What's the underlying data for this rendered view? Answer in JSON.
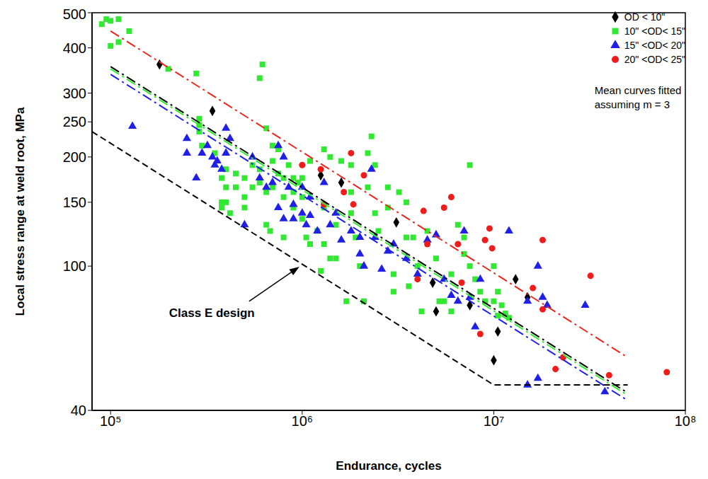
{
  "chart_data": {
    "type": "scatter",
    "x_label": "Endurance, cycles",
    "y_label": "Local stress range at weld root, MPa",
    "log": true,
    "grid": false,
    "legend": "upper right",
    "xlim": [
      80000,
      100000000
    ],
    "ylim": [
      40,
      500
    ],
    "xticks": [
      {
        "value": 100000,
        "label": "10⁵"
      },
      {
        "value": 1000000,
        "label": "10⁶"
      },
      {
        "value": 10000000,
        "label": "10⁷"
      },
      {
        "value": 100000000,
        "label": "10⁸"
      }
    ],
    "yticks": [
      40,
      100,
      150,
      200,
      250,
      300,
      400,
      500
    ],
    "note": [
      "Mean curves fitted",
      "assuming m = 3"
    ],
    "annotations": [
      {
        "text": "Class E design",
        "x": 1000000,
        "y": 101
      }
    ],
    "series": [
      {
        "name": "OD < 10\"",
        "color": "#000000",
        "marker": "diamond",
        "x": [
          180000,
          340000,
          1250000,
          1600000,
          3100000,
          4800000,
          5000000,
          7500000,
          10000000,
          10500000,
          13000000,
          15000000
        ],
        "y": [
          360,
          268,
          178,
          170,
          132,
          90,
          75,
          78,
          55,
          66,
          92,
          82
        ]
      },
      {
        "name": "10\" <OD< 15\"",
        "color": "#33e833",
        "marker": "square",
        "x": [
          90000,
          95000,
          100000,
          100000,
          110000,
          110000,
          125000,
          200000,
          280000,
          290000,
          290000,
          290000,
          300000,
          350000,
          380000,
          380000,
          380000,
          400000,
          400000,
          400000,
          420000,
          450000,
          450000,
          500000,
          500000,
          500000,
          550000,
          550000,
          600000,
          620000,
          600000,
          600000,
          650000,
          650000,
          650000,
          680000,
          700000,
          700000,
          700000,
          750000,
          750000,
          800000,
          800000,
          800000,
          850000,
          900000,
          900000,
          900000,
          950000,
          1000000,
          1000000,
          1000000,
          1050000,
          1100000,
          1100000,
          1200000,
          1250000,
          1300000,
          1300000,
          1300000,
          1400000,
          1400000,
          1500000,
          1500000,
          1600000,
          1700000,
          1800000,
          1800000,
          1800000,
          1900000,
          2000000,
          2100000,
          2200000,
          2200000,
          2300000,
          2400000,
          2400000,
          2500000,
          2800000,
          2800000,
          3000000,
          3000000,
          3200000,
          3500000,
          3500000,
          3600000,
          3800000,
          4000000,
          4200000,
          4500000,
          5000000,
          5200000,
          5500000,
          6000000,
          6000000,
          6500000,
          7000000,
          7000000,
          7500000,
          7500000,
          8000000,
          8500000,
          9000000,
          10000000,
          10000000,
          10500000,
          10500000,
          11000000,
          11500000,
          12000000
        ],
        "y": [
          465,
          480,
          475,
          405,
          480,
          415,
          445,
          350,
          340,
          255,
          245,
          235,
          215,
          205,
          175,
          150,
          145,
          185,
          165,
          150,
          140,
          180,
          165,
          175,
          155,
          145,
          190,
          165,
          330,
          360,
          185,
          170,
          160,
          130,
          240,
          125,
          215,
          195,
          165,
          210,
          180,
          175,
          155,
          120,
          190,
          175,
          160,
          145,
          170,
          175,
          155,
          135,
          120,
          195,
          115,
          125,
          97,
          210,
          145,
          115,
          200,
          105,
          130,
          105,
          195,
          80,
          190,
          160,
          140,
          120,
          100,
          80,
          205,
          165,
          228,
          190,
          140,
          125,
          165,
          145,
          95,
          85,
          160,
          150,
          120,
          88,
          120,
          100,
          75,
          125,
          105,
          80,
          80,
          75,
          95,
          130,
          120,
          108,
          190,
          100,
          92,
          85,
          80,
          100,
          80,
          73,
          85,
          78,
          74,
          72
        ]
      },
      {
        "name": "15\" <OD< 20\"",
        "color": "#1f1fe6",
        "marker": "triangle",
        "x": [
          130000,
          250000,
          250000,
          280000,
          300000,
          320000,
          340000,
          350000,
          360000,
          380000,
          400000,
          400000,
          420000,
          500000,
          550000,
          600000,
          650000,
          700000,
          750000,
          750000,
          800000,
          800000,
          850000,
          900000,
          900000,
          1000000,
          1000000,
          1050000,
          1100000,
          1100000,
          1200000,
          1300000,
          1400000,
          1500000,
          1600000,
          1800000,
          2000000,
          2000000,
          2100000,
          2300000,
          2400000,
          2600000,
          2800000,
          3000000,
          3500000,
          4000000,
          4500000,
          5000000,
          5500000,
          6000000,
          6500000,
          7000000,
          7500000,
          8000000,
          8500000,
          12000000,
          15000000,
          15000000,
          17000000,
          17000000,
          18000000,
          19000000,
          30000000,
          38000000
        ],
        "y": [
          243,
          225,
          205,
          175,
          205,
          215,
          200,
          190,
          195,
          185,
          240,
          205,
          225,
          130,
          200,
          175,
          165,
          170,
          215,
          145,
          135,
          200,
          165,
          148,
          135,
          165,
          140,
          130,
          155,
          138,
          125,
          170,
          130,
          140,
          118,
          125,
          120,
          108,
          100,
          185,
          120,
          98,
          110,
          115,
          105,
          95,
          118,
          122,
          92,
          83,
          80,
          125,
          82,
          68,
          92,
          125,
          80,
          47,
          100,
          49,
          82,
          78,
          78,
          45
        ]
      },
      {
        "name": "20\" <OD< 25\"",
        "color": "#f01c1c",
        "marker": "circle",
        "x": [
          1000000,
          1250000,
          1300000,
          1650000,
          1850000,
          1800000,
          2100000,
          4000000,
          4300000,
          4500000,
          5500000,
          6000000,
          6500000,
          6800000,
          8500000,
          9000000,
          9500000,
          9800000,
          16000000,
          18000000,
          18000000,
          21000000,
          23000000,
          32000000,
          40000000,
          80000000
        ],
        "y": [
          190,
          185,
          148,
          160,
          148,
          205,
          178,
          92,
          142,
          115,
          145,
          155,
          115,
          90,
          65,
          118,
          127,
          112,
          87,
          118,
          76,
          52,
          56,
          94,
          50,
          51
        ]
      },
      {
        "type": "line",
        "color": "#000000",
        "line_style": "dashdot",
        "x": [
          100000,
          50000000
        ],
        "y": [
          355,
          44.7
        ]
      },
      {
        "type": "line",
        "color": "#33e833",
        "line_style": "dashdot",
        "x": [
          100000,
          50000000
        ],
        "y": [
          350,
          44
        ]
      },
      {
        "type": "line",
        "color": "#1f1fe6",
        "line_style": "dashdot",
        "x": [
          100000,
          50000000
        ],
        "y": [
          338,
          42.6
        ]
      },
      {
        "type": "line",
        "color": "#e8261c",
        "line_style": "dashdot",
        "x": [
          100000,
          50000000
        ],
        "y": [
          445,
          56
        ]
      },
      {
        "type": "line",
        "color": "#000000",
        "line_style": "dashed",
        "x": [
          80000,
          10000000,
          50000000
        ],
        "y": [
          235,
          47,
          47
        ]
      }
    ]
  }
}
